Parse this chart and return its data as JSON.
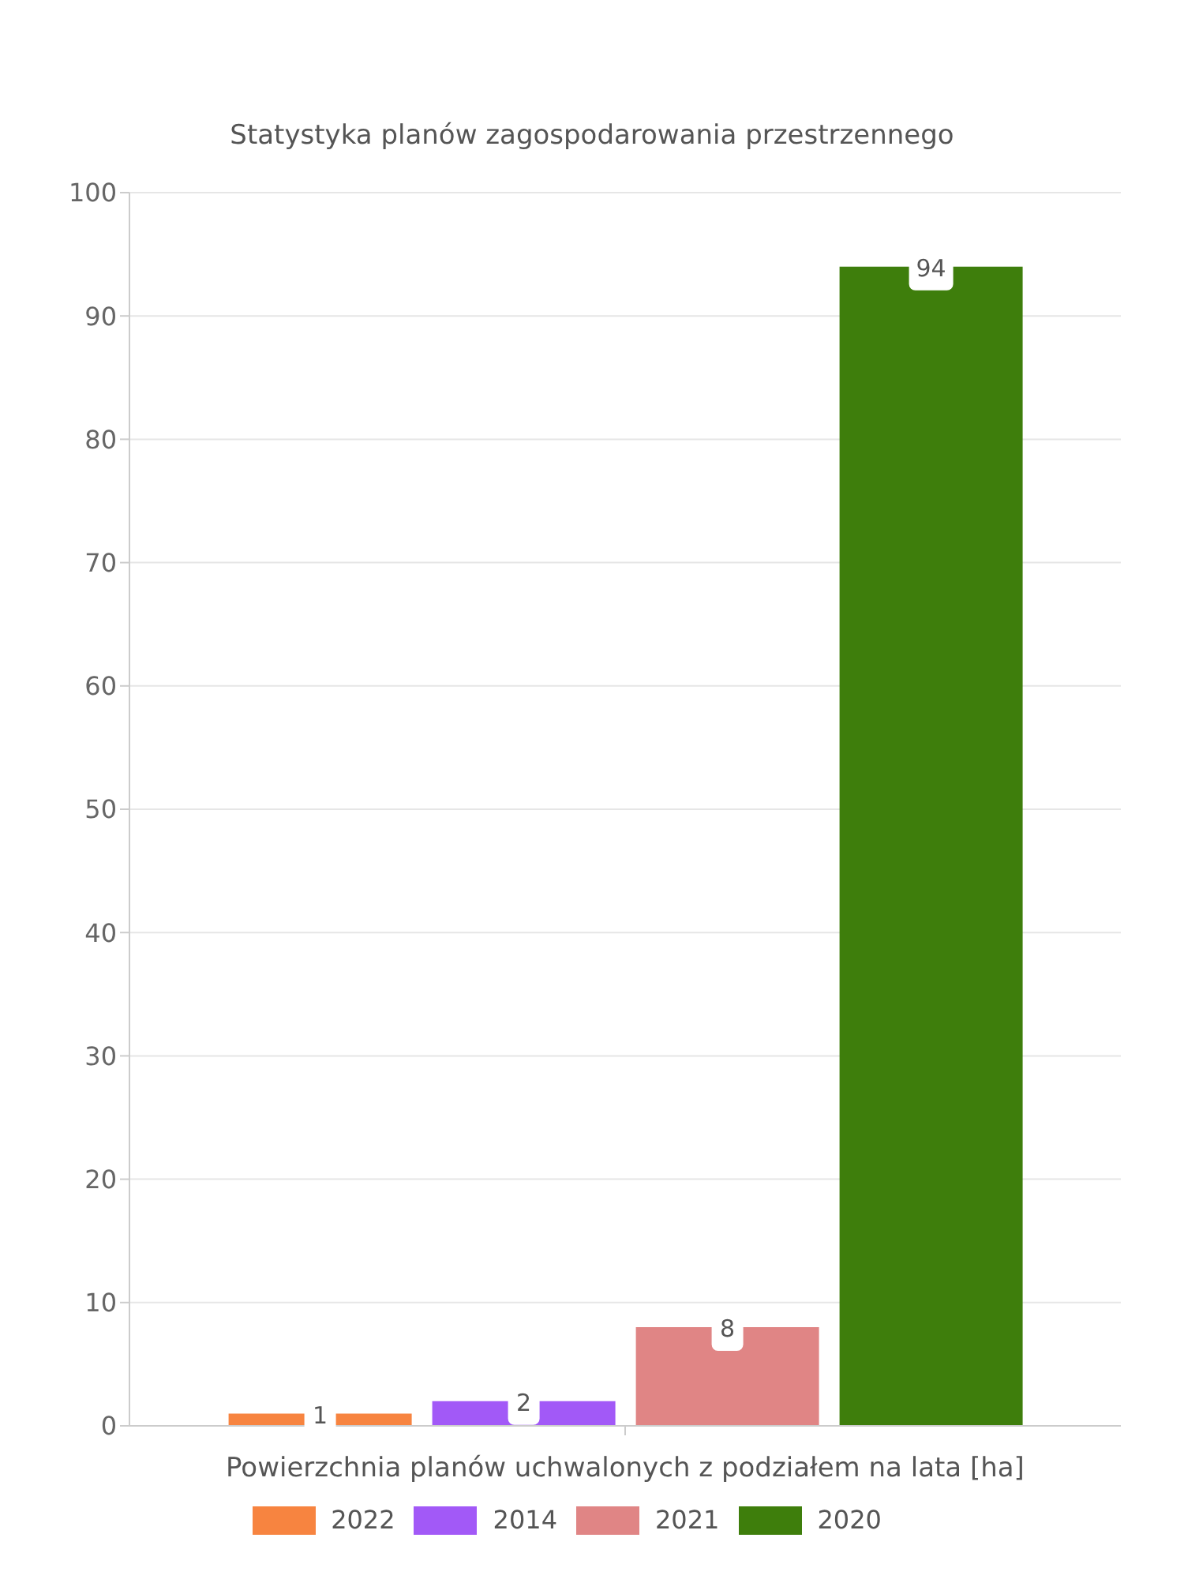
{
  "chart_data": {
    "type": "bar",
    "title": "Statystyka planów zagospodarowania przestrzennego",
    "xlabel": "Powierzchnia planów uchwalonych z podziałem na lata [ha]",
    "categories": [
      null
    ],
    "series": [
      {
        "name": "2022",
        "color": "#f78440",
        "values": [
          1
        ]
      },
      {
        "name": "2014",
        "color": "#a259f7",
        "values": [
          2
        ]
      },
      {
        "name": "2021",
        "color": "#e08585",
        "values": [
          8
        ]
      },
      {
        "name": "2020",
        "color": "#3e7e0c",
        "values": [
          94
        ]
      }
    ],
    "ylim": [
      0,
      100
    ],
    "yticks": [
      0,
      10,
      20,
      30,
      40,
      50,
      60,
      70,
      80,
      90,
      100
    ],
    "grid": "y",
    "legend": "bottom",
    "data_labels": true
  }
}
